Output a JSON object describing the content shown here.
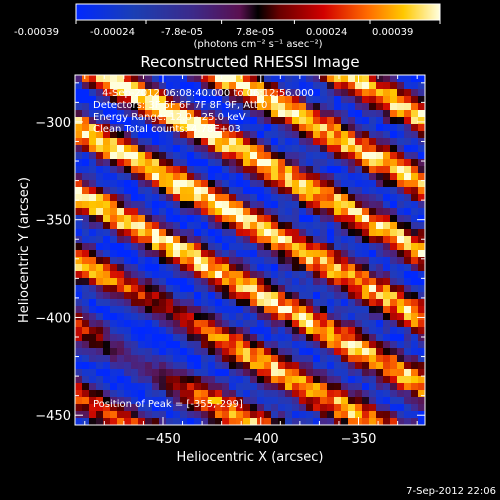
{
  "colorbar": {
    "ticks": [
      "-0.00039",
      "-0.00024",
      "-7.8e-05",
      "7.8e-05",
      "0.00024",
      "0.00039"
    ],
    "unit_label": "(photons cm⁻² s⁻¹ asec⁻²)"
  },
  "plot": {
    "title": "Reconstructed RHESSI Image",
    "info_lines": [
      "4-Sep-2012 06:08:40.000 to 06:12:56.000",
      "Detectors: 3F 5F 6F 7F 8F 9F, Att 0",
      "Energy Range: 12.0 - 25.0 keV",
      "Clean    Total counts: 4.78E+03"
    ],
    "peak_label": "Position of Peak = [-355,-299]",
    "footer_timestamp": "7-Sep-2012 22:06"
  },
  "chart_data": {
    "type": "heatmap",
    "title": "Reconstructed RHESSI Image",
    "xlabel": "Heliocentric X (arcsec)",
    "ylabel": "Heliocentric Y (arcsec)",
    "xlim": [
      -495,
      -316
    ],
    "ylim": [
      -455,
      -276
    ],
    "xticks": [
      -450,
      -400,
      -350
    ],
    "yticks": [
      -300,
      -350,
      -400,
      -450
    ],
    "colorscale": "hot/blue diverging",
    "value_range": [
      -0.00039,
      0.00039
    ],
    "colorbar_ticks": [
      -0.00039,
      -0.00024,
      -7.8e-05,
      7.8e-05,
      0.00024,
      0.00039
    ],
    "peak_position": [
      -355,
      -299
    ],
    "pattern": "diagonal banded stripes running from upper-left to lower-right, strongest in upper half",
    "grid": false,
    "legend": "none"
  }
}
